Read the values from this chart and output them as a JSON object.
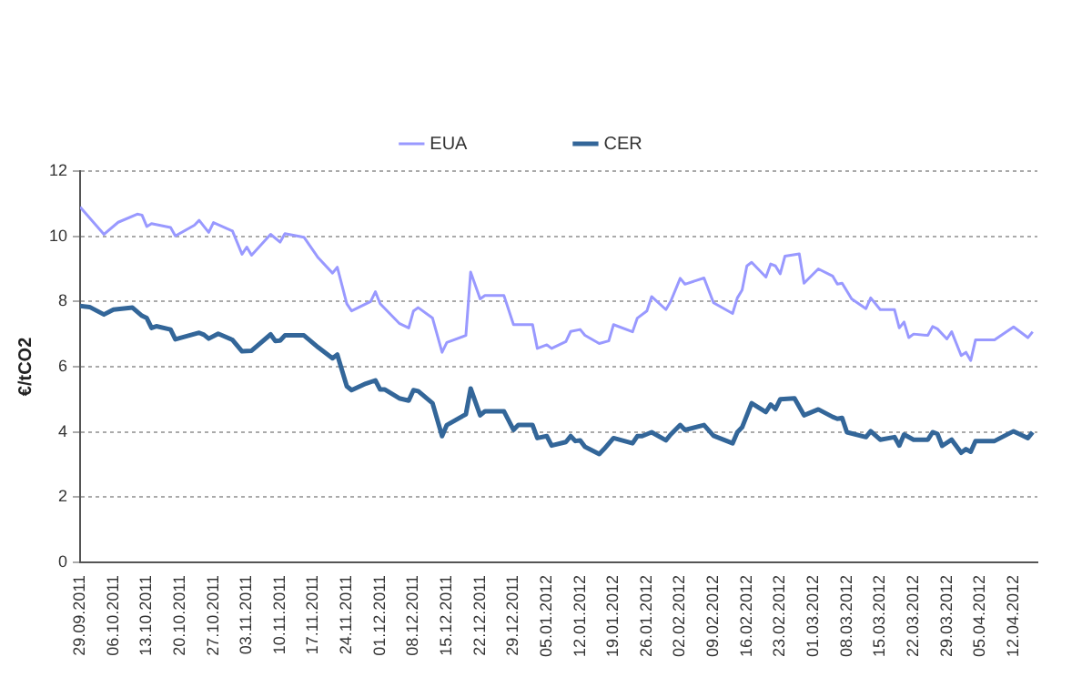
{
  "chart_data": {
    "type": "line",
    "ylabel": "€/tCO2",
    "ylim": [
      0,
      12
    ],
    "yticks": [
      0,
      2,
      4,
      6,
      8,
      10,
      12
    ],
    "grid": "y",
    "legend": "top",
    "marker": "none",
    "line_style": "solid",
    "xlim": [
      "2011-09-29",
      "2012-04-17"
    ],
    "xticks": [
      {
        "value": "2011-09-29",
        "label": "29.09.2011"
      },
      {
        "value": "2011-10-06",
        "label": "06.10.2011"
      },
      {
        "value": "2011-10-13",
        "label": "13.10.2011"
      },
      {
        "value": "2011-10-20",
        "label": "20.10.2011"
      },
      {
        "value": "2011-10-27",
        "label": "27.10.2011"
      },
      {
        "value": "2011-11-03",
        "label": "03.11.2011"
      },
      {
        "value": "2011-11-10",
        "label": "10.11.2011"
      },
      {
        "value": "2011-11-17",
        "label": "17.11.2011"
      },
      {
        "value": "2011-11-24",
        "label": "24.11.2011"
      },
      {
        "value": "2011-12-01",
        "label": "01.12.2011"
      },
      {
        "value": "2011-12-08",
        "label": "08.12.2011"
      },
      {
        "value": "2011-12-15",
        "label": "15.12.2011"
      },
      {
        "value": "2011-12-22",
        "label": "22.12.2011"
      },
      {
        "value": "2011-12-29",
        "label": "29.12.2011"
      },
      {
        "value": "2012-01-05",
        "label": "05.01.2012"
      },
      {
        "value": "2012-01-12",
        "label": "12.01.2012"
      },
      {
        "value": "2012-01-19",
        "label": "19.01.2012"
      },
      {
        "value": "2012-01-26",
        "label": "26.01.2012"
      },
      {
        "value": "2012-02-02",
        "label": "02.02.2012"
      },
      {
        "value": "2012-02-09",
        "label": "09.02.2012"
      },
      {
        "value": "2012-02-16",
        "label": "16.02.2012"
      },
      {
        "value": "2012-02-23",
        "label": "23.02.2012"
      },
      {
        "value": "2012-03-01",
        "label": "01.03.2012"
      },
      {
        "value": "2012-03-08",
        "label": "08.03.2012"
      },
      {
        "value": "2012-03-15",
        "label": "15.03.2012"
      },
      {
        "value": "2012-03-22",
        "label": "22.03.2012"
      },
      {
        "value": "2012-03-29",
        "label": "29.03.2012"
      },
      {
        "value": "2012-04-05",
        "label": "05.04.2012"
      },
      {
        "value": "2012-04-12",
        "label": "12.04.2012"
      }
    ],
    "series": [
      {
        "name": "EUA",
        "color": "#9999ff",
        "x": [
          "2011-09-29",
          "2011-10-04",
          "2011-10-07",
          "2011-10-11",
          "2011-10-12",
          "2011-10-13",
          "2011-10-14",
          "2011-10-18",
          "2011-10-19",
          "2011-10-23",
          "2011-10-24",
          "2011-10-26",
          "2011-10-27",
          "2011-10-31",
          "2011-11-02",
          "2011-11-03",
          "2011-11-04",
          "2011-11-08",
          "2011-11-10",
          "2011-11-11",
          "2011-11-15",
          "2011-11-18",
          "2011-11-21",
          "2011-11-22",
          "2011-11-24",
          "2011-11-25",
          "2011-11-29",
          "2011-11-30",
          "2011-12-01",
          "2011-12-05",
          "2011-12-07",
          "2011-12-08",
          "2011-12-09",
          "2011-12-12",
          "2011-12-14",
          "2011-12-15",
          "2011-12-19",
          "2011-12-20",
          "2011-12-22",
          "2011-12-23",
          "2011-12-27",
          "2011-12-29",
          "2012-01-02",
          "2012-01-03",
          "2012-01-05",
          "2012-01-06",
          "2012-01-09",
          "2012-01-10",
          "2012-01-12",
          "2012-01-13",
          "2012-01-16",
          "2012-01-18",
          "2012-01-19",
          "2012-01-23",
          "2012-01-24",
          "2012-01-26",
          "2012-01-27",
          "2012-01-30",
          "2012-01-31",
          "2012-02-02",
          "2012-02-03",
          "2012-02-07",
          "2012-02-09",
          "2012-02-13",
          "2012-02-14",
          "2012-02-15",
          "2012-02-16",
          "2012-02-17",
          "2012-02-20",
          "2012-02-21",
          "2012-02-22",
          "2012-02-23",
          "2012-02-24",
          "2012-02-27",
          "2012-02-28",
          "2012-03-02",
          "2012-03-05",
          "2012-03-06",
          "2012-03-07",
          "2012-03-09",
          "2012-03-12",
          "2012-03-13",
          "2012-03-15",
          "2012-03-18",
          "2012-03-19",
          "2012-03-20",
          "2012-03-21",
          "2012-03-22",
          "2012-03-25",
          "2012-03-26",
          "2012-03-27",
          "2012-03-29",
          "2012-03-30",
          "2012-04-01",
          "2012-04-02",
          "2012-04-03",
          "2012-04-04",
          "2012-04-08",
          "2012-04-12",
          "2012-04-15",
          "2012-04-16"
        ],
        "values": [
          10.9,
          10.06,
          10.43,
          10.68,
          10.65,
          10.3,
          10.39,
          10.27,
          10.01,
          10.34,
          10.49,
          10.12,
          10.42,
          10.16,
          9.45,
          9.67,
          9.42,
          10.06,
          9.82,
          10.08,
          9.97,
          9.34,
          8.87,
          9.05,
          7.93,
          7.71,
          8.0,
          8.3,
          7.93,
          7.33,
          7.19,
          7.71,
          7.81,
          7.49,
          6.44,
          6.74,
          6.96,
          8.9,
          8.08,
          8.18,
          8.18,
          7.29,
          7.29,
          6.56,
          6.67,
          6.56,
          6.77,
          7.08,
          7.14,
          6.96,
          6.71,
          6.79,
          7.29,
          7.07,
          7.49,
          7.71,
          8.15,
          7.75,
          8.0,
          8.71,
          8.53,
          8.72,
          7.96,
          7.63,
          8.11,
          8.35,
          9.09,
          9.2,
          8.75,
          9.15,
          9.09,
          8.85,
          9.39,
          9.46,
          8.56,
          9.0,
          8.78,
          8.53,
          8.56,
          8.08,
          7.78,
          8.11,
          7.75,
          7.75,
          7.19,
          7.37,
          6.89,
          7.0,
          6.96,
          7.23,
          7.16,
          6.85,
          7.07,
          6.34,
          6.44,
          6.19,
          6.82,
          6.82,
          7.22,
          6.89,
          7.07
        ]
      },
      {
        "name": "CER",
        "color": "#336699",
        "x": [
          "2011-09-29",
          "2011-10-01",
          "2011-10-04",
          "2011-10-06",
          "2011-10-10",
          "2011-10-12",
          "2011-10-13",
          "2011-10-14",
          "2011-10-15",
          "2011-10-18",
          "2011-10-19",
          "2011-10-24",
          "2011-10-25",
          "2011-10-26",
          "2011-10-28",
          "2011-10-31",
          "2011-11-02",
          "2011-11-04",
          "2011-11-08",
          "2011-11-09",
          "2011-11-10",
          "2011-11-11",
          "2011-11-15",
          "2011-11-18",
          "2011-11-21",
          "2011-11-22",
          "2011-11-24",
          "2011-11-25",
          "2011-11-28",
          "2011-11-30",
          "2011-12-01",
          "2011-12-02",
          "2011-12-05",
          "2011-12-07",
          "2011-12-08",
          "2011-12-09",
          "2011-12-12",
          "2011-12-14",
          "2011-12-15",
          "2011-12-19",
          "2011-12-20",
          "2011-12-22",
          "2011-12-23",
          "2011-12-27",
          "2011-12-29",
          "2011-12-30",
          "2012-01-02",
          "2012-01-03",
          "2012-01-05",
          "2012-01-06",
          "2012-01-09",
          "2012-01-10",
          "2012-01-11",
          "2012-01-12",
          "2012-01-13",
          "2012-01-16",
          "2012-01-17",
          "2012-01-19",
          "2012-01-23",
          "2012-01-24",
          "2012-01-25",
          "2012-01-27",
          "2012-01-30",
          "2012-01-31",
          "2012-02-02",
          "2012-02-03",
          "2012-02-07",
          "2012-02-09",
          "2012-02-13",
          "2012-02-14",
          "2012-02-15",
          "2012-02-17",
          "2012-02-20",
          "2012-02-21",
          "2012-02-22",
          "2012-02-23",
          "2012-02-26",
          "2012-02-28",
          "2012-03-02",
          "2012-03-05",
          "2012-03-06",
          "2012-03-07",
          "2012-03-08",
          "2012-03-12",
          "2012-03-13",
          "2012-03-15",
          "2012-03-18",
          "2012-03-19",
          "2012-03-20",
          "2012-03-22",
          "2012-03-25",
          "2012-03-26",
          "2012-03-27",
          "2012-03-28",
          "2012-03-30",
          "2012-04-01",
          "2012-04-02",
          "2012-04-03",
          "2012-04-04",
          "2012-04-08",
          "2012-04-12",
          "2012-04-15",
          "2012-04-16"
        ],
        "values": [
          7.86,
          7.83,
          7.6,
          7.75,
          7.81,
          7.56,
          7.49,
          7.19,
          7.24,
          7.14,
          6.84,
          7.04,
          6.98,
          6.86,
          7.01,
          6.82,
          6.47,
          6.49,
          6.99,
          6.79,
          6.8,
          6.96,
          6.96,
          6.59,
          6.26,
          6.37,
          5.4,
          5.28,
          5.48,
          5.58,
          5.3,
          5.3,
          5.03,
          4.96,
          5.28,
          5.25,
          4.88,
          3.87,
          4.21,
          4.54,
          5.33,
          4.51,
          4.63,
          4.63,
          4.06,
          4.21,
          4.21,
          3.81,
          3.87,
          3.58,
          3.69,
          3.87,
          3.72,
          3.74,
          3.54,
          3.32,
          3.47,
          3.81,
          3.65,
          3.87,
          3.87,
          3.99,
          3.74,
          3.92,
          4.21,
          4.06,
          4.21,
          3.88,
          3.65,
          3.99,
          4.14,
          4.88,
          4.61,
          4.84,
          4.7,
          5.0,
          5.03,
          4.51,
          4.69,
          4.46,
          4.4,
          4.43,
          3.99,
          3.84,
          4.02,
          3.76,
          3.84,
          3.58,
          3.92,
          3.76,
          3.76,
          3.99,
          3.94,
          3.57,
          3.76,
          3.36,
          3.47,
          3.39,
          3.72,
          3.72,
          4.02,
          3.81,
          3.99
        ]
      }
    ]
  }
}
